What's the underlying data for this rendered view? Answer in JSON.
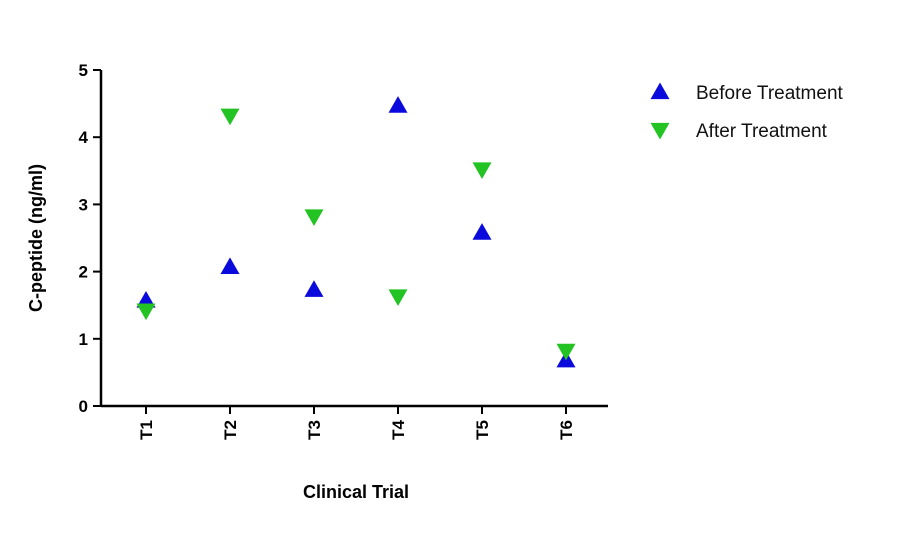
{
  "chart_data": {
    "type": "scatter",
    "title": "",
    "xlabel": "Clinical Trial",
    "ylabel": "C-peptide (ng/ml)",
    "categories": [
      "T1",
      "T2",
      "T3",
      "T4",
      "T5",
      "T6"
    ],
    "ylim": [
      0,
      5
    ],
    "yticks": [
      0,
      1,
      2,
      3,
      4,
      5
    ],
    "grid": false,
    "legend_position": "top-right",
    "series": [
      {
        "name": "Before Treatment",
        "marker": "triangle-up",
        "color": "#0a0adc",
        "values": [
          1.57,
          2.07,
          1.73,
          4.47,
          2.58,
          0.68
        ]
      },
      {
        "name": "After Treatment",
        "marker": "triangle-down",
        "color": "#22c322",
        "values": [
          1.42,
          4.32,
          2.82,
          1.63,
          3.52,
          0.82
        ]
      }
    ]
  }
}
